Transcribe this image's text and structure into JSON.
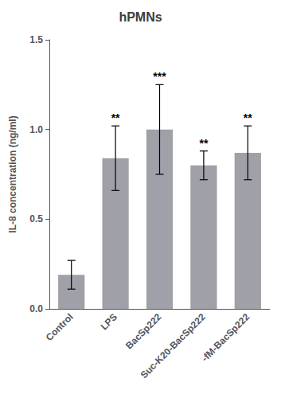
{
  "chart_data": {
    "type": "bar",
    "title": "hPMNs",
    "ylabel": "IL-8 concentration (ng/ml)",
    "categories": [
      "Control",
      "LPS",
      "BacSp222",
      "Suc-K20-BacSp222",
      "-fM-BacSp222"
    ],
    "values": [
      0.19,
      0.84,
      1.0,
      0.8,
      0.87
    ],
    "errors": [
      0.08,
      0.18,
      0.25,
      0.08,
      0.15
    ],
    "color": "#A0A0A8",
    "annotations": [
      {
        "category": "LPS",
        "text": "**"
      },
      {
        "category": "BacSp222",
        "text": "***"
      },
      {
        "category": "Suc-K20-BacSp222",
        "text": "**"
      },
      {
        "category": "-fM-BacSp222",
        "text": "**"
      }
    ],
    "ylim": [
      0,
      1.5
    ],
    "yticks": [
      {
        "value": 0,
        "label": "0.0"
      },
      0.5,
      {
        "value": 1,
        "label": "1.0"
      },
      1.5
    ],
    "grid": false
  }
}
